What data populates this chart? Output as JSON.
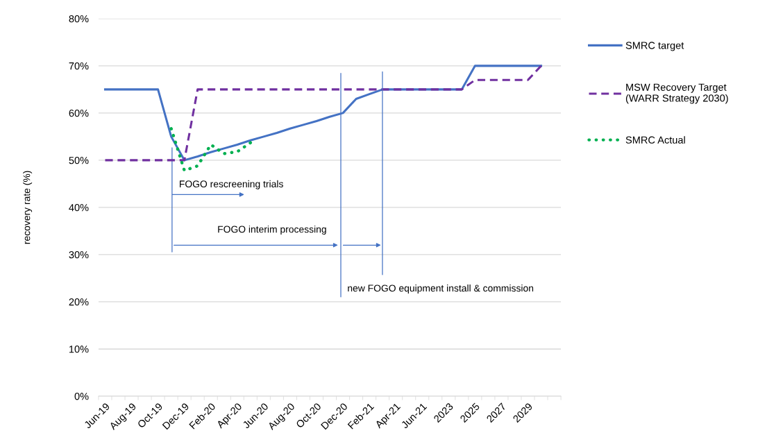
{
  "chart_data": {
    "type": "line",
    "ylabel": "recovery rate (%)",
    "categories": [
      "Jun-19",
      null,
      "Aug-19",
      null,
      "Oct-19",
      null,
      "Dec-19",
      null,
      "Feb-20",
      null,
      "Apr-20",
      null,
      "Jun-20",
      null,
      "Aug-20",
      null,
      "Oct-20",
      null,
      "Dec-20",
      null,
      "Feb-21",
      null,
      "Apr-21",
      null,
      "Jun-21",
      null,
      "2023",
      null,
      "2025",
      null,
      "2027",
      null,
      "2029",
      null,
      null
    ],
    "series": [
      {
        "name": "SMRC target",
        "color": "#4472c4",
        "line_style": "solid",
        "values": [
          65,
          65,
          65,
          65,
          65,
          55,
          50,
          50.8,
          51.7,
          52.5,
          53.3,
          54.2,
          55,
          55.8,
          56.7,
          57.5,
          58.3,
          59.2,
          60,
          63,
          64,
          65,
          65,
          65,
          65,
          65,
          65,
          65,
          70,
          70,
          70,
          70,
          70,
          70,
          null
        ]
      },
      {
        "name": "MSW Recovery Target (WARR Strategy 2030)",
        "color": "#7030a0",
        "line_style": "dashed",
        "values": [
          50,
          50,
          50,
          50,
          50,
          50,
          50,
          65,
          65,
          65,
          65,
          65,
          65,
          65,
          65,
          65,
          65,
          65,
          65,
          65,
          65,
          65,
          65,
          65,
          65,
          65,
          65,
          65,
          67,
          67,
          67,
          67,
          67,
          70,
          null
        ]
      },
      {
        "name": "SMRC Actual",
        "color": "#00b050",
        "line_style": "dotted",
        "values": [
          null,
          null,
          null,
          null,
          null,
          56.7,
          47.8,
          48.8,
          53.3,
          51.4,
          51.8,
          53.7,
          null,
          null,
          null,
          null,
          null,
          null,
          null,
          null,
          null,
          null,
          null,
          null,
          null,
          null,
          null,
          null,
          null,
          null,
          null,
          null,
          null,
          null,
          null
        ]
      }
    ],
    "ylim": [
      0,
      80
    ],
    "yticks": [
      {
        "value": 0,
        "label": "0%"
      },
      {
        "value": 10,
        "label": "10%"
      },
      {
        "value": 20,
        "label": "20%"
      },
      {
        "value": 30,
        "label": "30%"
      },
      {
        "value": 40,
        "label": "40%"
      },
      {
        "value": 50,
        "label": "50%"
      },
      {
        "value": 60,
        "label": "60%"
      },
      {
        "value": 70,
        "label": "70%"
      },
      {
        "value": 80,
        "label": "80%"
      }
    ],
    "grid": "y",
    "legend": "right",
    "marker": "none",
    "annotations": [
      "FOGO rescreening trials",
      "FOGO interim processing",
      "new FOGO equipment install & commission"
    ]
  }
}
